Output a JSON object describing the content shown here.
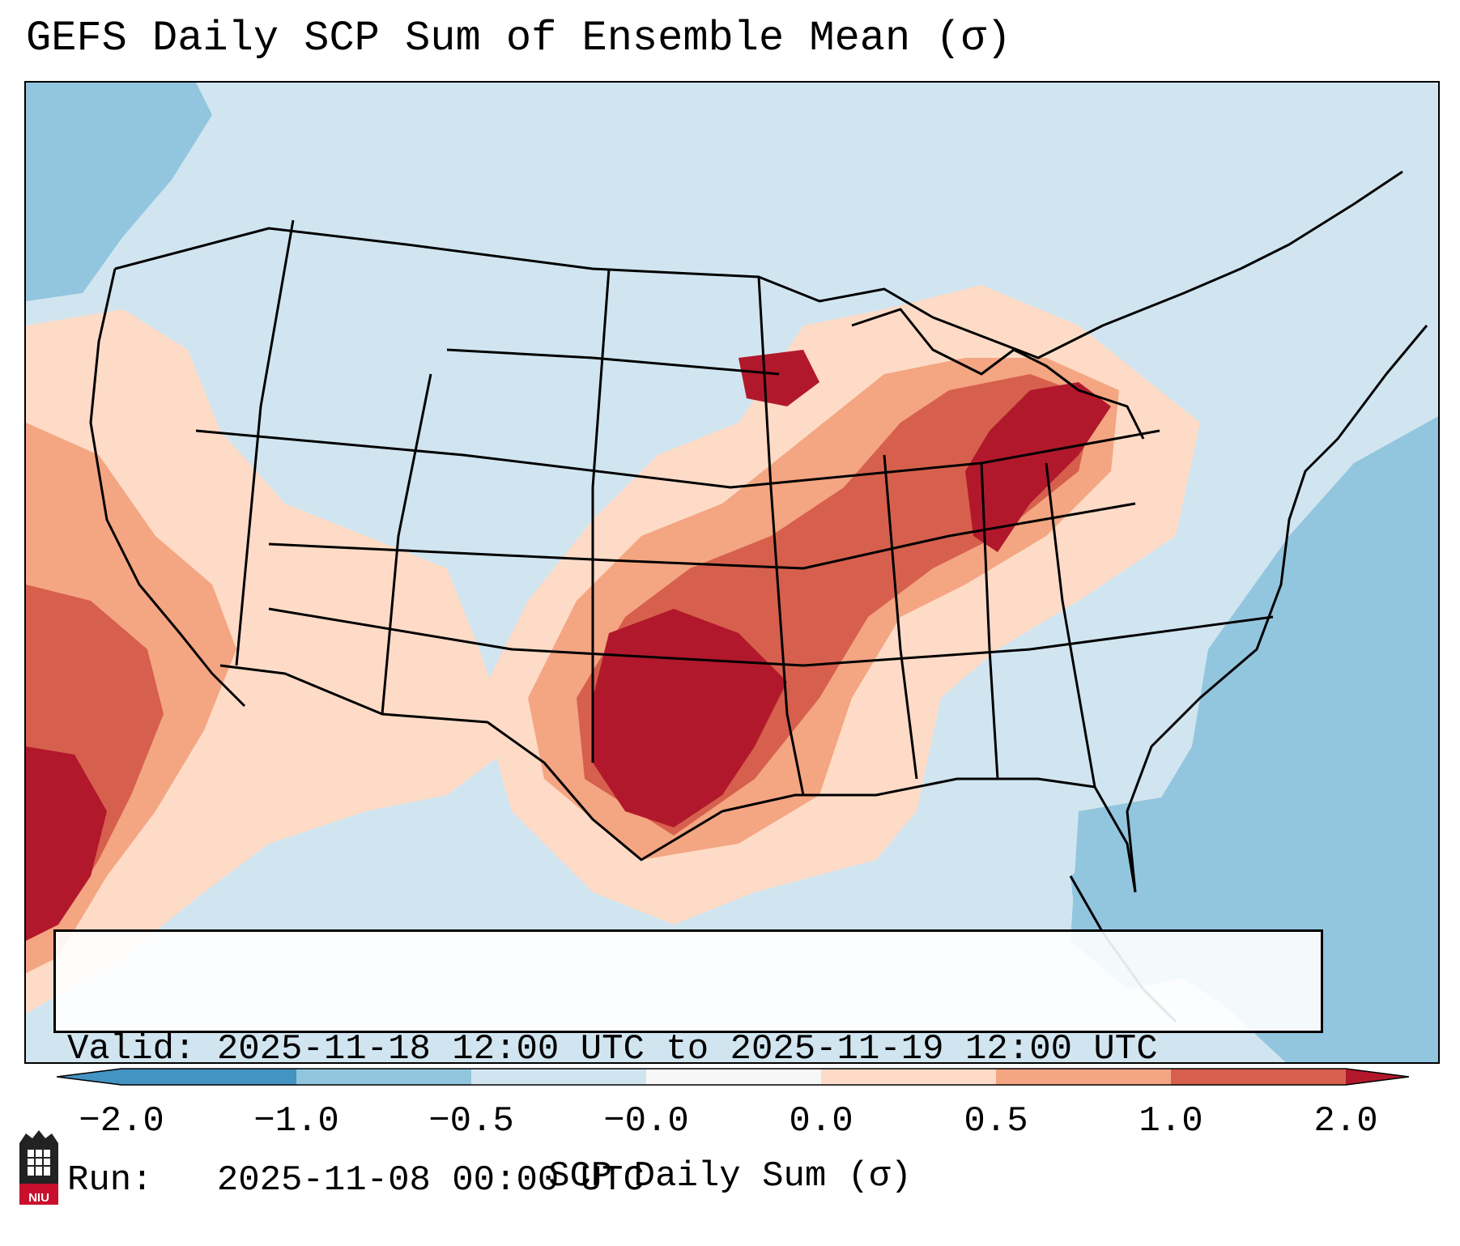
{
  "title": "GEFS Daily SCP Sum of Ensemble Mean (σ)",
  "info": {
    "valid": "Valid: 2025-11-18 12:00 UTC to 2025-11-19 12:00 UTC",
    "run": "Run:   2025-11-08 00:00 UTC"
  },
  "colorbar": {
    "label": "SCP Daily Sum (σ)",
    "ticks": [
      "−2.0",
      "−1.0",
      "−0.5",
      "−0.0",
      "0.0",
      "0.5",
      "1.0",
      "2.0"
    ],
    "colors": [
      "#4393c3",
      "#92c5de",
      "#d1e5f0",
      "#f7f7f7",
      "#fddbc7",
      "#f4a582",
      "#d6604d",
      "#b2182b"
    ]
  },
  "legend_colors": {
    "land_ocean_neutral": "#d1e5f0",
    "weak_negative": "#92c5de",
    "weak_positive": "#fddbc7",
    "moderate_positive": "#f4a582",
    "strong_positive": "#d6604d",
    "extreme_positive": "#b2182b"
  },
  "logo": {
    "text": "NIU",
    "color": "#c8102e"
  }
}
